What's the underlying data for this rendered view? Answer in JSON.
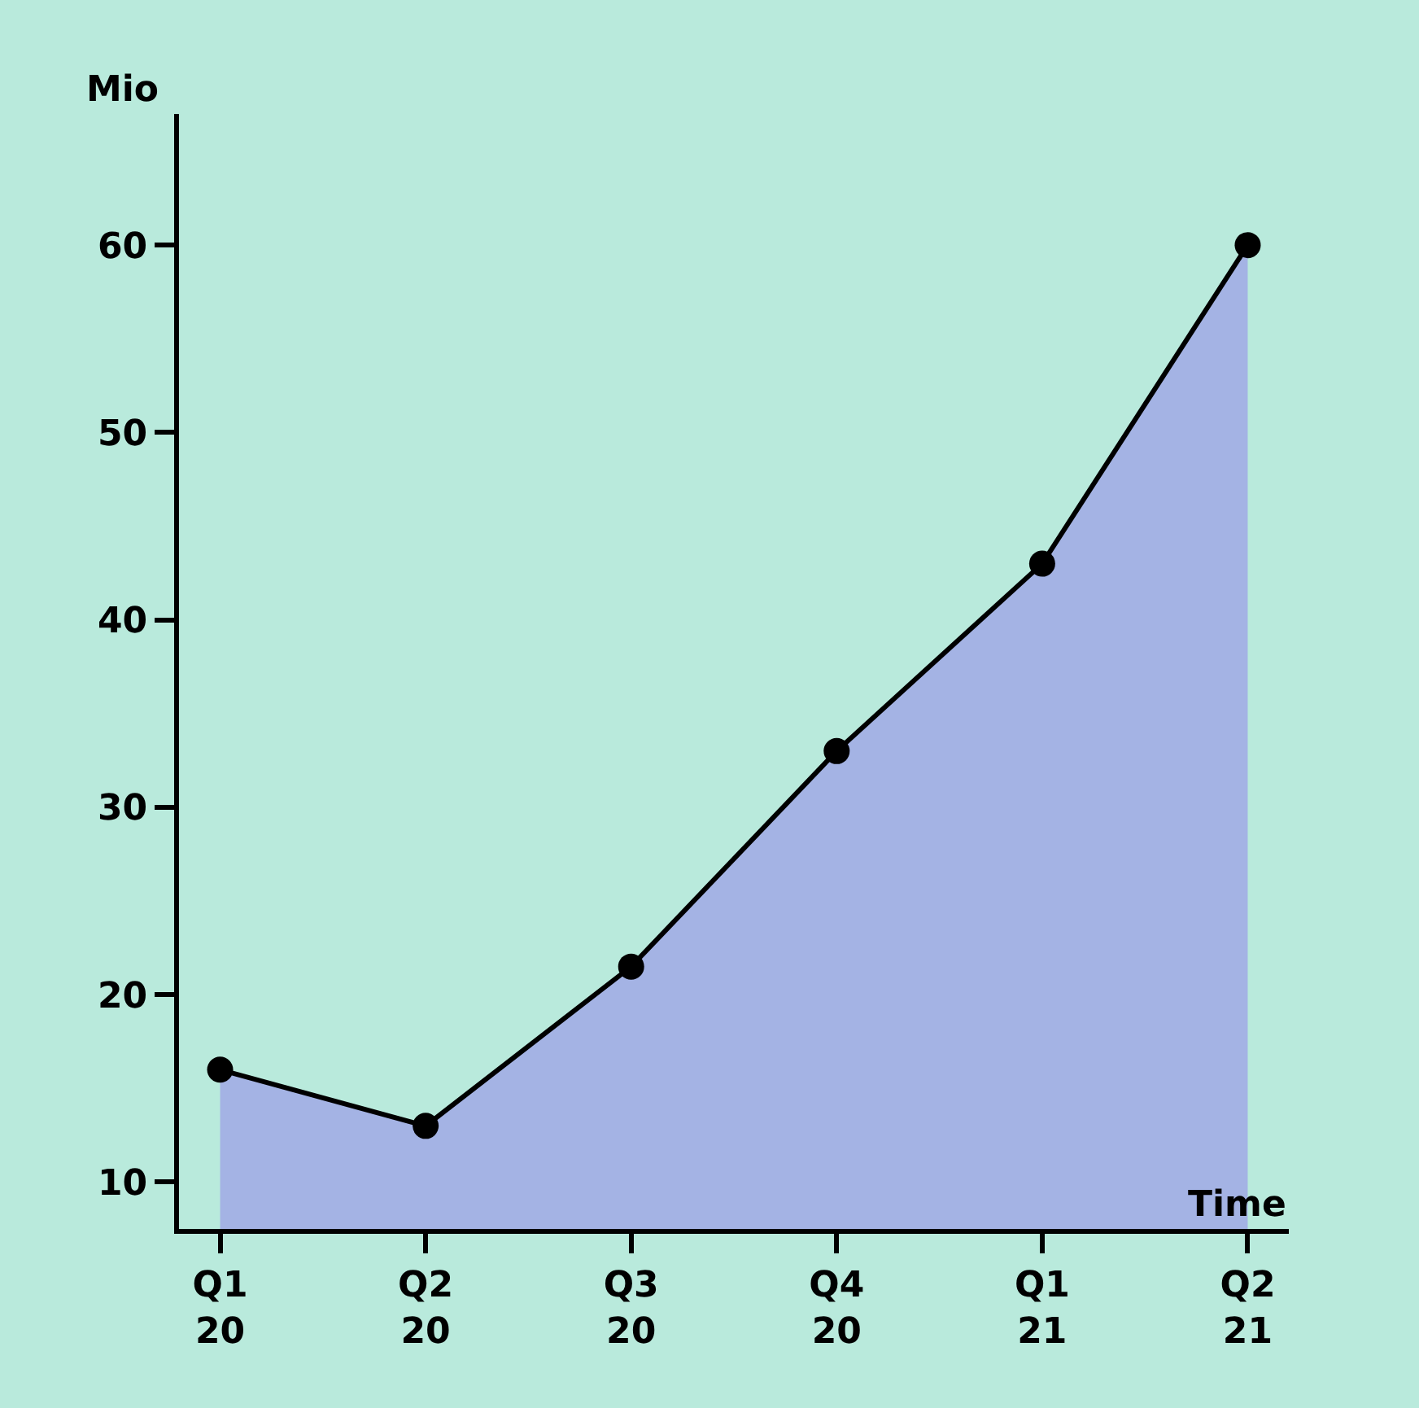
{
  "chart_data": {
    "type": "area",
    "xlabel": "Time",
    "ylabel": "Mio",
    "categories": [
      "Q1\n20",
      "Q2\n20",
      "Q3\n20",
      "Q4\n20",
      "Q1\n21",
      "Q2\n21"
    ],
    "series": [
      {
        "color": "#a4b3e4",
        "values": [
          16,
          13,
          21.5,
          33,
          43,
          60
        ]
      }
    ],
    "ylim": [
      7.5,
      67
    ],
    "yticks": [
      10,
      20,
      30,
      40,
      50,
      60
    ],
    "marker": "circle",
    "line_style": "solid",
    "grid": false,
    "legend": false
  }
}
